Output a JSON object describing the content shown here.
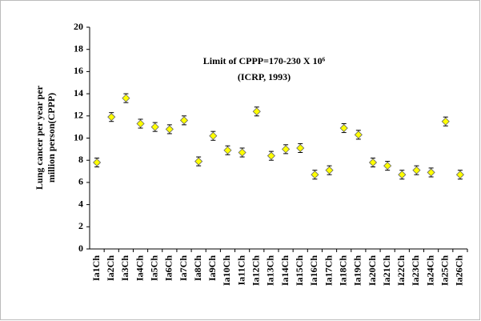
{
  "chart_data": {
    "type": "errorpoint",
    "y_label": [
      "Lung cancer per year per",
      "million person(CPPP)"
    ],
    "annotation": [
      "Limit of CPPP=170-230  X 10⁶",
      "(ICRP, 1993)"
    ],
    "categories": [
      "Ia1Ch",
      "Ia2Ch",
      "Ia3Ch",
      "Ia4Ch",
      "Ia5Ch",
      "Ia6Ch",
      "Ia7Ch",
      "Ia8Ch",
      "Ia9Ch",
      "Ia10Ch",
      "Ia11Ch",
      "Ia12Ch",
      "Ia13Ch",
      "Ia14Ch",
      "Ia15Ch",
      "Ia16Ch",
      "Ia17Ch",
      "Ia18Ch",
      "Ia19Ch",
      "Ia20Ch",
      "Ia21Ch",
      "Ia22Ch",
      "Ia23Ch",
      "Ia24Ch",
      "Ia25Ch",
      "Ia26Ch"
    ],
    "values": [
      7.8,
      11.9,
      13.6,
      11.3,
      11.0,
      10.8,
      11.6,
      7.9,
      10.2,
      8.9,
      8.7,
      12.4,
      8.4,
      9.0,
      9.1,
      6.7,
      7.1,
      10.9,
      10.3,
      7.8,
      7.5,
      6.7,
      7.1,
      6.9,
      11.5,
      6.7
    ],
    "errors": [
      0.4,
      0.4,
      0.4,
      0.4,
      0.4,
      0.4,
      0.4,
      0.4,
      0.4,
      0.4,
      0.4,
      0.4,
      0.4,
      0.4,
      0.4,
      0.4,
      0.4,
      0.4,
      0.4,
      0.4,
      0.4,
      0.4,
      0.4,
      0.4,
      0.4,
      0.4
    ],
    "color": "#ffff00",
    "ylim": [
      0,
      20
    ],
    "yticks": [
      0,
      2,
      4,
      6,
      8,
      10,
      12,
      14,
      16,
      18,
      20
    ],
    "grid": false
  }
}
